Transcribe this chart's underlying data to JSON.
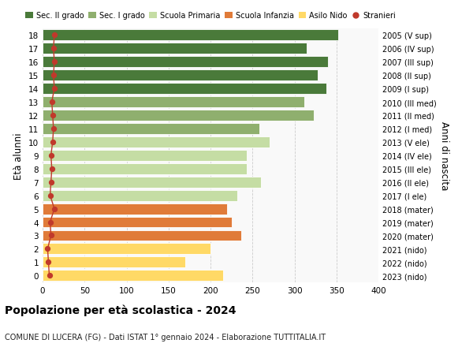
{
  "ages": [
    0,
    1,
    2,
    3,
    4,
    5,
    6,
    7,
    8,
    9,
    10,
    11,
    12,
    13,
    14,
    15,
    16,
    17,
    18
  ],
  "years": [
    "2023 (nido)",
    "2022 (nido)",
    "2021 (nido)",
    "2020 (mater)",
    "2019 (mater)",
    "2018 (mater)",
    "2017 (I ele)",
    "2016 (II ele)",
    "2015 (III ele)",
    "2014 (IV ele)",
    "2013 (V ele)",
    "2012 (I med)",
    "2011 (II med)",
    "2010 (III med)",
    "2009 (I sup)",
    "2008 (II sup)",
    "2007 (III sup)",
    "2006 (IV sup)",
    "2005 (V sup)"
  ],
  "values": [
    215,
    170,
    200,
    237,
    225,
    220,
    232,
    260,
    243,
    243,
    270,
    258,
    323,
    312,
    338,
    328,
    340,
    315,
    352
  ],
  "stranieri": [
    8,
    7,
    6,
    10,
    9,
    14,
    9,
    10,
    11,
    10,
    12,
    13,
    12,
    11,
    14,
    13,
    14,
    13,
    14
  ],
  "colors": [
    "#FFD966",
    "#FFD966",
    "#FFD966",
    "#E07B39",
    "#E07B39",
    "#E07B39",
    "#C5DDA4",
    "#C5DDA4",
    "#C5DDA4",
    "#C5DDA4",
    "#C5DDA4",
    "#8FAF6E",
    "#8FAF6E",
    "#8FAF6E",
    "#4A7A3A",
    "#4A7A3A",
    "#4A7A3A",
    "#4A7A3A",
    "#4A7A3A"
  ],
  "legend_labels": [
    "Sec. II grado",
    "Sec. I grado",
    "Scuola Primaria",
    "Scuola Infanzia",
    "Asilo Nido",
    "Stranieri"
  ],
  "legend_colors": [
    "#4A7A3A",
    "#8FAF6E",
    "#C5DDA4",
    "#E07B39",
    "#FFD966",
    "#C0392B"
  ],
  "ylabel": "Età alunni",
  "ylabel_right": "Anni di nascita",
  "title": "Popolazione per età scolastica - 2024",
  "subtitle": "COMUNE DI LUCERA (FG) - Dati ISTAT 1° gennaio 2024 - Elaborazione TUTTITALIA.IT",
  "xlim": [
    0,
    400
  ],
  "xticks": [
    0,
    50,
    100,
    150,
    200,
    250,
    300,
    350,
    400
  ],
  "bg_color": "#FFFFFF",
  "plot_bg_color": "#F9F9F9",
  "grid_color": "#CCCCCC",
  "stranieri_color": "#C0392B"
}
